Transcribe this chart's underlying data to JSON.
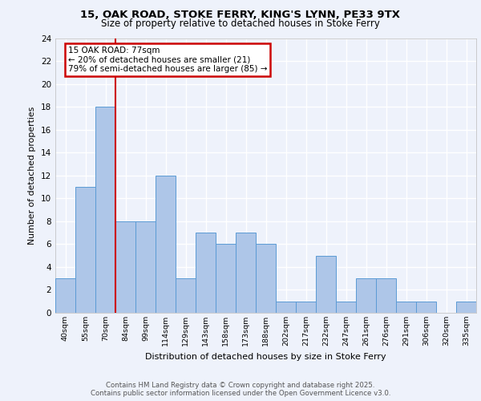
{
  "title_line1": "15, OAK ROAD, STOKE FERRY, KING'S LYNN, PE33 9TX",
  "title_line2": "Size of property relative to detached houses in Stoke Ferry",
  "categories": [
    "40sqm",
    "55sqm",
    "70sqm",
    "84sqm",
    "99sqm",
    "114sqm",
    "129sqm",
    "143sqm",
    "158sqm",
    "173sqm",
    "188sqm",
    "202sqm",
    "217sqm",
    "232sqm",
    "247sqm",
    "261sqm",
    "276sqm",
    "291sqm",
    "306sqm",
    "320sqm",
    "335sqm"
  ],
  "values": [
    3,
    11,
    18,
    8,
    8,
    12,
    3,
    7,
    6,
    7,
    6,
    1,
    1,
    5,
    1,
    3,
    3,
    1,
    1,
    0,
    1
  ],
  "bar_color": "#aec6e8",
  "bar_edge_color": "#5b9bd5",
  "red_line_index": 2,
  "ylabel": "Number of detached properties",
  "xlabel": "Distribution of detached houses by size in Stoke Ferry",
  "ylim": [
    0,
    24
  ],
  "yticks": [
    0,
    2,
    4,
    6,
    8,
    10,
    12,
    14,
    16,
    18,
    20,
    22,
    24
  ],
  "annotation_title": "15 OAK ROAD: 77sqm",
  "annotation_line1": "← 20% of detached houses are smaller (21)",
  "annotation_line2": "79% of semi-detached houses are larger (85) →",
  "footer_line1": "Contains HM Land Registry data © Crown copyright and database right 2025.",
  "footer_line2": "Contains public sector information licensed under the Open Government Licence v3.0.",
  "bg_color": "#eef2fb",
  "grid_color": "#ffffff",
  "annotation_box_color": "#ffffff",
  "annotation_box_edge": "#cc0000"
}
